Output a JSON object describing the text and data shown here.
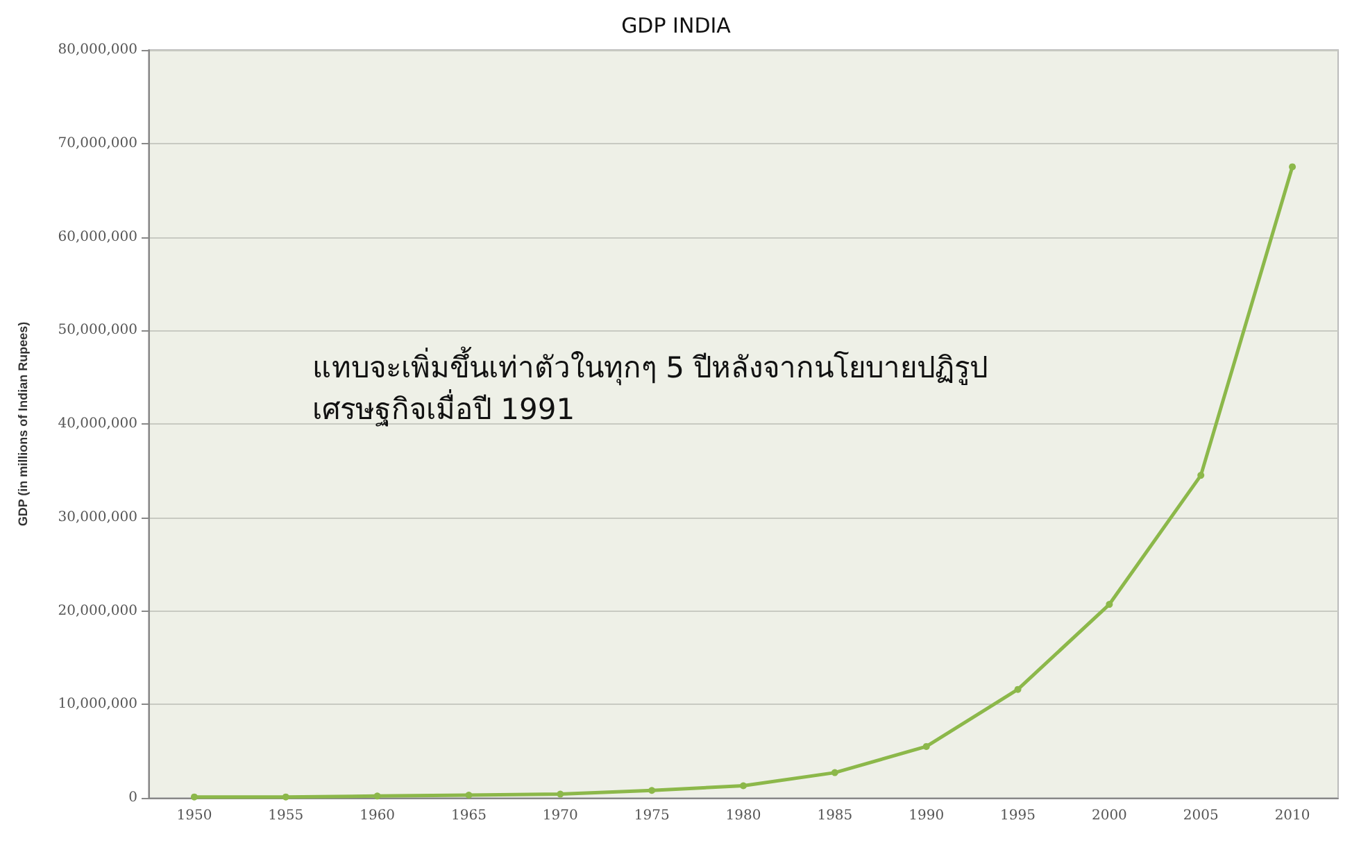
{
  "chart_data": {
    "type": "line",
    "title": "GDP INDIA",
    "ylabel": "GDP (in millions of Indian Rupees)",
    "annotations": [
      "แทบจะเพิ่มขึ้นเท่าตัวในทุกๆ 5 ปีหลังจากนโยบายปฏิรูป\nเศรษฐกิจเมื่อปี 1991"
    ],
    "categories": [
      "1950",
      "1955",
      "1960",
      "1965",
      "1970",
      "1975",
      "1980",
      "1985",
      "1990",
      "1995",
      "2000",
      "2005",
      "2010"
    ],
    "series": [
      {
        "color": "#8cb84a",
        "values": [
          100000,
          100000,
          200000,
          300000,
          400000,
          800000,
          1300000,
          2700000,
          5500000,
          11600000,
          20700000,
          34500000,
          67500000
        ]
      }
    ],
    "ylim": [
      0,
      80000000
    ],
    "yticks": [
      0,
      {
        "value": 10000000,
        "label": "10,000,000"
      },
      {
        "value": 20000000,
        "label": "20,000,000"
      },
      {
        "value": 30000000,
        "label": "30,000,000"
      },
      {
        "value": 40000000,
        "label": "40,000,000"
      },
      {
        "value": 50000000,
        "label": "50,000,000"
      },
      {
        "value": 60000000,
        "label": "60,000,000"
      },
      {
        "value": 70000000,
        "label": "70,000,000"
      },
      {
        "value": 80000000,
        "label": "80,000,000"
      }
    ],
    "grid": "y",
    "marker": "circle",
    "line_style": "solid"
  }
}
